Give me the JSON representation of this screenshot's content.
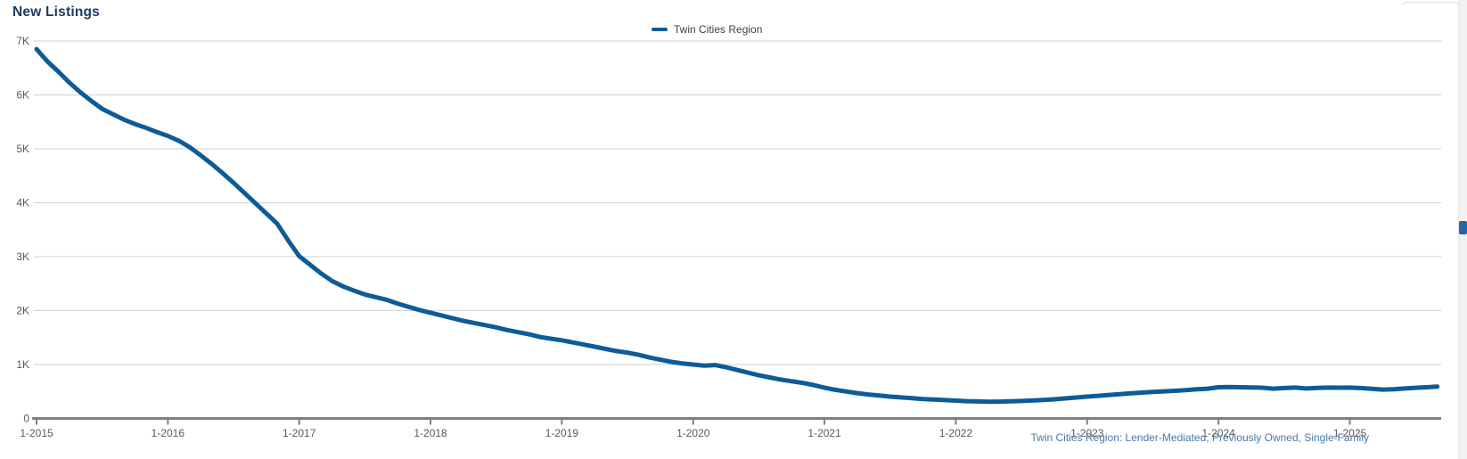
{
  "header": {
    "title": "New Listings"
  },
  "legend": {
    "items": [
      {
        "label": "Twin Cities Region",
        "color": "#0d5b97"
      }
    ]
  },
  "footer": {
    "note": "Twin Cities Region: Lender-Mediated, Previously Owned, Single-Family"
  },
  "colors": {
    "title_text": "#1c3a5e",
    "series_line": "#0d5b97",
    "gridline": "#d2d2d2",
    "axis_line": "#808080",
    "axis_tick": "#808080",
    "axis_label_text": "#595959",
    "legend_text": "#3f3f3f",
    "footer_text": "#4a78a8",
    "background": "#ffffff"
  },
  "chart_data": {
    "type": "line",
    "title": "New Listings",
    "xlabel": "",
    "ylabel": "",
    "grid": "horizontal",
    "legend_position": "top-center",
    "ylim": [
      0,
      7000
    ],
    "y_ticks": [
      0,
      1000,
      2000,
      3000,
      4000,
      5000,
      6000,
      7000
    ],
    "y_tick_labels": [
      "0",
      "1K",
      "2K",
      "3K",
      "4K",
      "5K",
      "6K",
      "7K"
    ],
    "x_tick_labels": [
      "1-2015",
      "1-2016",
      "1-2017",
      "1-2018",
      "1-2019",
      "1-2020",
      "1-2021",
      "1-2022",
      "1-2023",
      "1-2024",
      "1-2025"
    ],
    "x_frequency": "monthly",
    "x_start_month": "2015-01",
    "x_end_month": "2025-09",
    "series": [
      {
        "name": "Twin Cities Region",
        "color": "#0d5b97",
        "values": [
          6850,
          6620,
          6430,
          6230,
          6050,
          5890,
          5740,
          5640,
          5540,
          5460,
          5390,
          5310,
          5240,
          5150,
          5030,
          4880,
          4720,
          4550,
          4370,
          4180,
          3990,
          3800,
          3610,
          3300,
          3010,
          2850,
          2690,
          2550,
          2450,
          2370,
          2300,
          2250,
          2200,
          2130,
          2070,
          2010,
          1960,
          1910,
          1860,
          1810,
          1770,
          1730,
          1690,
          1640,
          1600,
          1560,
          1510,
          1480,
          1450,
          1410,
          1370,
          1330,
          1290,
          1250,
          1220,
          1180,
          1130,
          1090,
          1050,
          1020,
          1000,
          980,
          990,
          950,
          900,
          850,
          800,
          760,
          720,
          690,
          660,
          620,
          570,
          530,
          500,
          470,
          445,
          425,
          405,
          390,
          375,
          360,
          350,
          340,
          330,
          320,
          315,
          310,
          312,
          318,
          324,
          332,
          342,
          356,
          372,
          388,
          405,
          420,
          436,
          452,
          466,
          480,
          492,
          502,
          512,
          526,
          540,
          552,
          578,
          582,
          578,
          574,
          570,
          552,
          564,
          572,
          556,
          566,
          572,
          570,
          572,
          564,
          550,
          536,
          540,
          556,
          568,
          578,
          590
        ]
      }
    ]
  }
}
